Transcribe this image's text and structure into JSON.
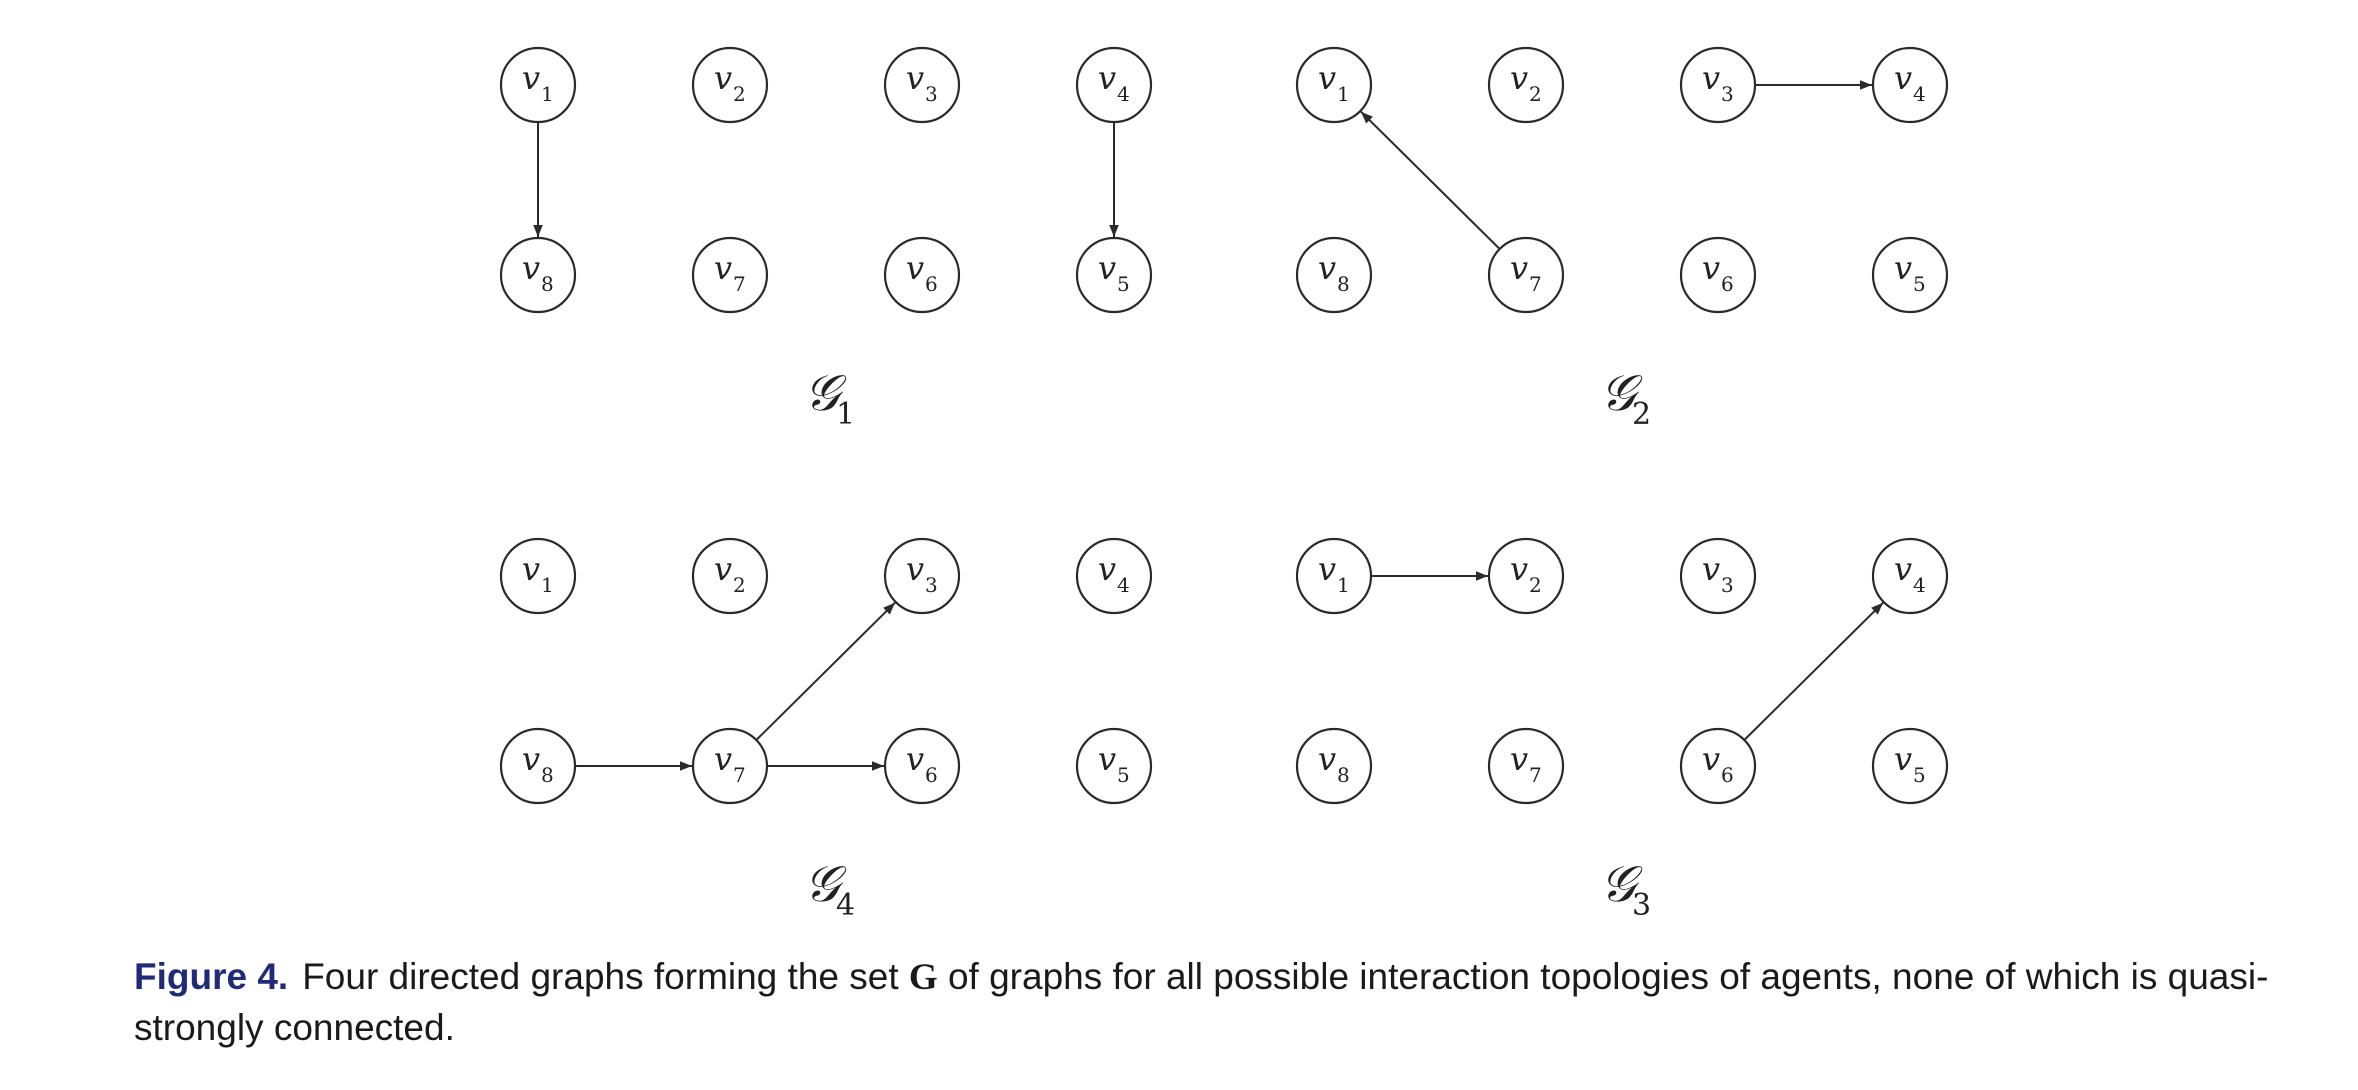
{
  "panels": [
    {
      "label": "𝒢",
      "sub": "1",
      "nodes": [
        {
          "label": "v",
          "sub": "1",
          "row": 0,
          "col": 0
        },
        {
          "label": "v",
          "sub": "2",
          "row": 0,
          "col": 1
        },
        {
          "label": "v",
          "sub": "3",
          "row": 0,
          "col": 2
        },
        {
          "label": "v",
          "sub": "4",
          "row": 0,
          "col": 3
        },
        {
          "label": "v",
          "sub": "8",
          "row": 1,
          "col": 0
        },
        {
          "label": "v",
          "sub": "7",
          "row": 1,
          "col": 1
        },
        {
          "label": "v",
          "sub": "6",
          "row": 1,
          "col": 2
        },
        {
          "label": "v",
          "sub": "5",
          "row": 1,
          "col": 3
        }
      ],
      "edges": [
        {
          "from": "1",
          "to": "8"
        },
        {
          "from": "4",
          "to": "5"
        }
      ]
    },
    {
      "label": "𝒢",
      "sub": "2",
      "nodes": [
        {
          "label": "v",
          "sub": "1",
          "row": 0,
          "col": 0
        },
        {
          "label": "v",
          "sub": "2",
          "row": 0,
          "col": 1
        },
        {
          "label": "v",
          "sub": "3",
          "row": 0,
          "col": 2
        },
        {
          "label": "v",
          "sub": "4",
          "row": 0,
          "col": 3
        },
        {
          "label": "v",
          "sub": "8",
          "row": 1,
          "col": 0
        },
        {
          "label": "v",
          "sub": "7",
          "row": 1,
          "col": 1
        },
        {
          "label": "v",
          "sub": "6",
          "row": 1,
          "col": 2
        },
        {
          "label": "v",
          "sub": "5",
          "row": 1,
          "col": 3
        }
      ],
      "edges": [
        {
          "from": "7",
          "to": "1"
        },
        {
          "from": "3",
          "to": "4"
        }
      ]
    },
    {
      "label": "𝒢",
      "sub": "4",
      "nodes": [
        {
          "label": "v",
          "sub": "1",
          "row": 0,
          "col": 0
        },
        {
          "label": "v",
          "sub": "2",
          "row": 0,
          "col": 1
        },
        {
          "label": "v",
          "sub": "3",
          "row": 0,
          "col": 2
        },
        {
          "label": "v",
          "sub": "4",
          "row": 0,
          "col": 3
        },
        {
          "label": "v",
          "sub": "8",
          "row": 1,
          "col": 0
        },
        {
          "label": "v",
          "sub": "7",
          "row": 1,
          "col": 1
        },
        {
          "label": "v",
          "sub": "6",
          "row": 1,
          "col": 2
        },
        {
          "label": "v",
          "sub": "5",
          "row": 1,
          "col": 3
        }
      ],
      "edges": [
        {
          "from": "8",
          "to": "7"
        },
        {
          "from": "7",
          "to": "6"
        },
        {
          "from": "7",
          "to": "3"
        }
      ]
    },
    {
      "label": "𝒢",
      "sub": "3",
      "nodes": [
        {
          "label": "v",
          "sub": "1",
          "row": 0,
          "col": 0
        },
        {
          "label": "v",
          "sub": "2",
          "row": 0,
          "col": 1
        },
        {
          "label": "v",
          "sub": "3",
          "row": 0,
          "col": 2
        },
        {
          "label": "v",
          "sub": "4",
          "row": 0,
          "col": 3
        },
        {
          "label": "v",
          "sub": "8",
          "row": 1,
          "col": 0
        },
        {
          "label": "v",
          "sub": "7",
          "row": 1,
          "col": 1
        },
        {
          "label": "v",
          "sub": "6",
          "row": 1,
          "col": 2
        },
        {
          "label": "v",
          "sub": "5",
          "row": 1,
          "col": 3
        }
      ],
      "edges": [
        {
          "from": "1",
          "to": "2"
        },
        {
          "from": "6",
          "to": "4"
        }
      ]
    }
  ],
  "caption": {
    "label": "Figure 4.",
    "text_before": "Four directed graphs forming the set ",
    "bold_symbol": "G",
    "text_after": " of graphs for all possible interaction topologies of agents, none of which is quasi-strongly connected."
  }
}
